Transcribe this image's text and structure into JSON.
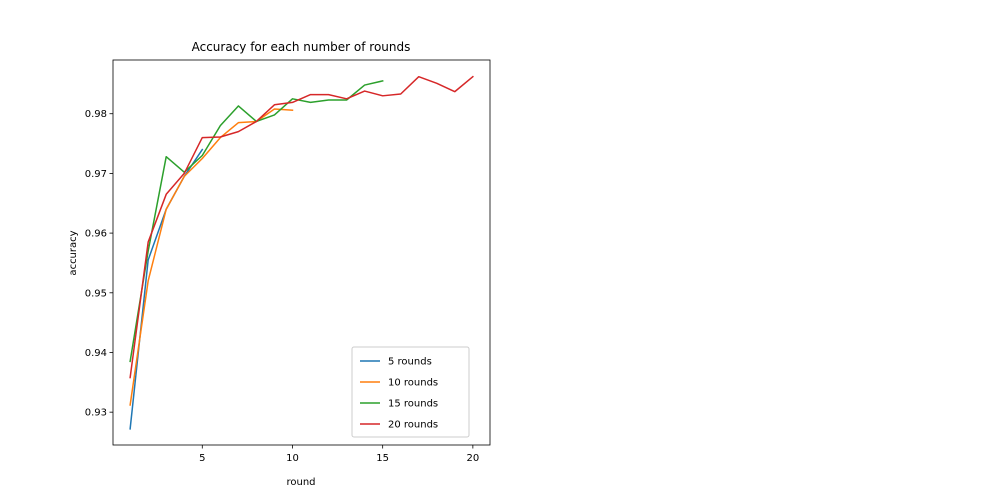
{
  "chart_data": {
    "type": "line",
    "title": "Accuracy for each number of rounds",
    "xlabel": "round",
    "ylabel": "accuracy",
    "xlim": [
      0.05,
      20.95
    ],
    "ylim": [
      0.9245,
      0.989
    ],
    "xticks": [
      5,
      10,
      15,
      20
    ],
    "yticks": [
      0.93,
      0.94,
      0.95,
      0.96,
      0.97,
      0.98
    ],
    "ytick_labels": [
      "0.93",
      "0.94",
      "0.95",
      "0.96",
      "0.97",
      "0.98"
    ],
    "grid": false,
    "legend_position": "lower-right",
    "series": [
      {
        "name": "5 rounds",
        "color": "#1f77b4",
        "x": [
          1,
          2,
          3,
          4,
          5
        ],
        "y": [
          0.9272,
          0.9555,
          0.964,
          0.9695,
          0.974
        ]
      },
      {
        "name": "10 rounds",
        "color": "#ff7f0e",
        "x": [
          1,
          2,
          3,
          4,
          5,
          6,
          7,
          8,
          9,
          10
        ],
        "y": [
          0.9312,
          0.952,
          0.964,
          0.9695,
          0.9725,
          0.976,
          0.9785,
          0.9787,
          0.9808,
          0.9806
        ]
      },
      {
        "name": "15 rounds",
        "color": "#2ca02c",
        "x": [
          1,
          2,
          3,
          4,
          5,
          6,
          7,
          8,
          9,
          10,
          11,
          12,
          13,
          14,
          15
        ],
        "y": [
          0.9385,
          0.957,
          0.9728,
          0.9702,
          0.973,
          0.978,
          0.9813,
          0.9787,
          0.9798,
          0.9825,
          0.9819,
          0.9823,
          0.9823,
          0.9848,
          0.9855
        ]
      },
      {
        "name": "20 rounds",
        "color": "#d62728",
        "x": [
          1,
          2,
          3,
          4,
          5,
          6,
          7,
          8,
          9,
          10,
          11,
          12,
          13,
          14,
          15,
          16,
          17,
          18,
          19,
          20
        ],
        "y": [
          0.9358,
          0.9585,
          0.9665,
          0.97,
          0.976,
          0.9761,
          0.977,
          0.9787,
          0.9815,
          0.9819,
          0.9832,
          0.9832,
          0.9825,
          0.9838,
          0.983,
          0.9833,
          0.9862,
          0.9851,
          0.9837,
          0.9862
        ]
      }
    ]
  }
}
